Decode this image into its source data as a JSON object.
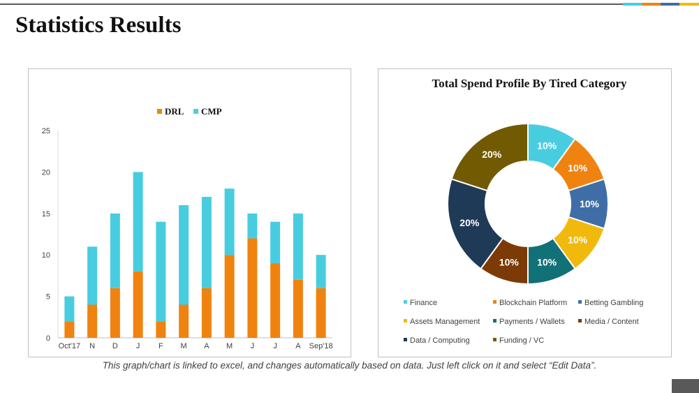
{
  "page": {
    "title": "Statistics Results",
    "footnote": "This graph/chart is linked to excel, and changes automatically based on data. Just left click on it and select “Edit Data”.",
    "accent_colors": [
      "#48cde0",
      "#f0830f",
      "#3f6ea6",
      "#f1b90c"
    ]
  },
  "chart_data": [
    {
      "type": "bar",
      "stacked": true,
      "categories": [
        "Oct'17",
        "N",
        "D",
        "J",
        "F",
        "M",
        "A",
        "M",
        "J",
        "J",
        "A",
        "Sep'18"
      ],
      "series": [
        {
          "name": "DRL",
          "color": "#f0830f",
          "values": [
            2,
            4,
            6,
            8,
            2,
            4,
            6,
            10,
            12,
            9,
            7,
            6
          ]
        },
        {
          "name": "CMP",
          "color": "#48cde0",
          "values": [
            3,
            7,
            9,
            12,
            12,
            12,
            11,
            8,
            3,
            5,
            8,
            4
          ]
        }
      ],
      "ylim": [
        0,
        25
      ],
      "yticks": [
        "0",
        "5",
        "10",
        "15",
        "20",
        "25"
      ],
      "legend": "top-center",
      "grid": false
    },
    {
      "type": "pie",
      "donut": true,
      "title": "Total Spend Profile By Tired Category",
      "slices": [
        {
          "label": "Finance",
          "value": 10,
          "display": "10%",
          "color": "#48cde0"
        },
        {
          "label": "Blockchain Platform",
          "value": 10,
          "display": "10%",
          "color": "#f0830f"
        },
        {
          "label": "Betting Gambling",
          "value": 10,
          "display": "10%",
          "color": "#3f6ea6"
        },
        {
          "label": "Assets Management",
          "value": 10,
          "display": "10%",
          "color": "#f1b90c"
        },
        {
          "label": "Payments / Wallets",
          "value": 10,
          "display": "10%",
          "color": "#127077"
        },
        {
          "label": "Media / Content",
          "value": 10,
          "display": "10%",
          "color": "#7b3a06"
        },
        {
          "label": "Data / Computing",
          "value": 20,
          "display": "20%",
          "color": "#1f3a57"
        },
        {
          "label": "Funding / VC",
          "value": 20,
          "display": "20%",
          "color": "#725a02"
        }
      ],
      "legend": "bottom"
    }
  ]
}
